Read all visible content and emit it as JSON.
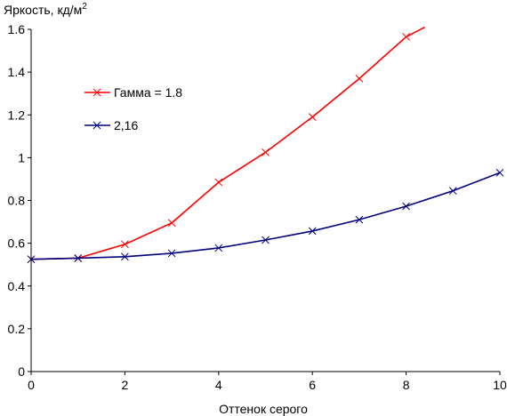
{
  "chart_data": {
    "type": "line",
    "xlabel": "Оттенок серого",
    "ylabel": "Яркость, кд/м",
    "ylabel_superscript": "2",
    "xlim": [
      0,
      10
    ],
    "ylim": [
      0,
      1.6
    ],
    "xticks": [
      "0",
      "2",
      "4",
      "6",
      "8",
      "10"
    ],
    "yticks": [
      "0",
      "0.2",
      "0.4",
      "0.6",
      "0.8",
      "1",
      "1.2",
      "1.4",
      "1.6"
    ],
    "xtick_values": [
      0,
      2,
      4,
      6,
      8,
      10
    ],
    "ytick_values": [
      0,
      0.2,
      0.4,
      0.6,
      0.8,
      1,
      1.2,
      1.4,
      1.6
    ],
    "grid": false,
    "legend_position": "upper-left",
    "series": [
      {
        "name": "Гамма = 1.8",
        "color": "#ff0000",
        "marker": "x",
        "x": [
          0,
          1,
          2,
          3,
          4,
          5,
          6,
          7,
          8
        ],
        "y": [
          0.525,
          0.53,
          0.595,
          0.695,
          0.885,
          1.025,
          1.19,
          1.37,
          1.565
        ],
        "line_extends_to": [
          8.4,
          1.61
        ]
      },
      {
        "name": "2,16",
        "color": "#00007f",
        "marker": "x",
        "x": [
          0,
          1,
          2,
          3,
          4,
          5,
          6,
          7,
          8,
          9,
          10
        ],
        "y": [
          0.525,
          0.53,
          0.537,
          0.553,
          0.578,
          0.615,
          0.657,
          0.71,
          0.773,
          0.845,
          0.93
        ]
      }
    ]
  }
}
